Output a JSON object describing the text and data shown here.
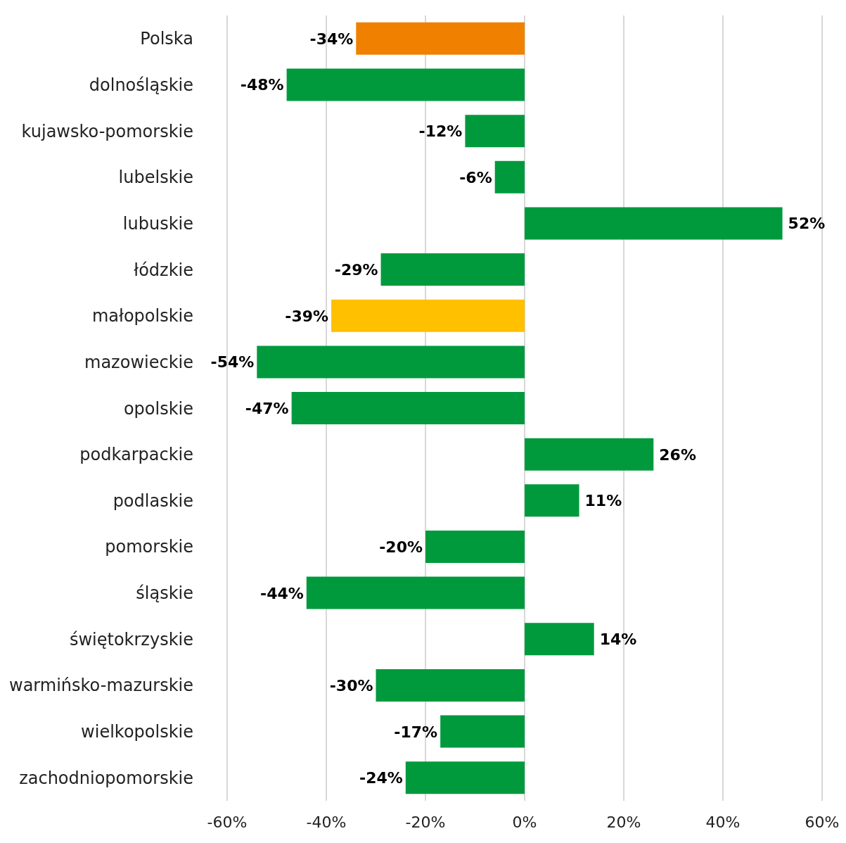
{
  "chart_data": {
    "type": "bar",
    "orientation": "horizontal",
    "categories": [
      "Polska",
      "dolnośląskie",
      "kujawsko-pomorskie",
      "lubelskie",
      "lubuskie",
      "łódzkie",
      "małopolskie",
      "mazowieckie",
      "opolskie",
      "podkarpackie",
      "podlaskie",
      "pomorskie",
      "śląskie",
      "świętokrzyskie",
      "warmińsko-mazurskie",
      "wielkopolskie",
      "zachodniopomorskie"
    ],
    "values": [
      -34,
      -48,
      -12,
      -6,
      52,
      -29,
      -39,
      -54,
      -47,
      26,
      11,
      -20,
      -44,
      14,
      -30,
      -17,
      -24
    ],
    "value_labels": [
      "-34%",
      "-48%",
      "-12%",
      "-6%",
      "52%",
      "-29%",
      "-39%",
      "-54%",
      "-47%",
      "26%",
      "11%",
      "-20%",
      "-44%",
      "14%",
      "-30%",
      "-17%",
      "-24%"
    ],
    "colors": [
      "#f08000",
      "#009a3d",
      "#009a3d",
      "#009a3d",
      "#009a3d",
      "#009a3d",
      "#ffc000",
      "#009a3d",
      "#009a3d",
      "#009a3d",
      "#009a3d",
      "#009a3d",
      "#009a3d",
      "#009a3d",
      "#009a3d",
      "#009a3d",
      "#009a3d"
    ],
    "xlim": [
      -60,
      60
    ],
    "xticks": [
      {
        "value": -60,
        "label": "-60%"
      },
      {
        "value": -40,
        "label": "-40%"
      },
      {
        "value": -20,
        "label": "-20%"
      },
      {
        "value": 0,
        "label": "0%"
      },
      {
        "value": 20,
        "label": "20%"
      },
      {
        "value": 40,
        "label": "40%"
      },
      {
        "value": 60,
        "label": "60%"
      }
    ],
    "grid": "x"
  }
}
